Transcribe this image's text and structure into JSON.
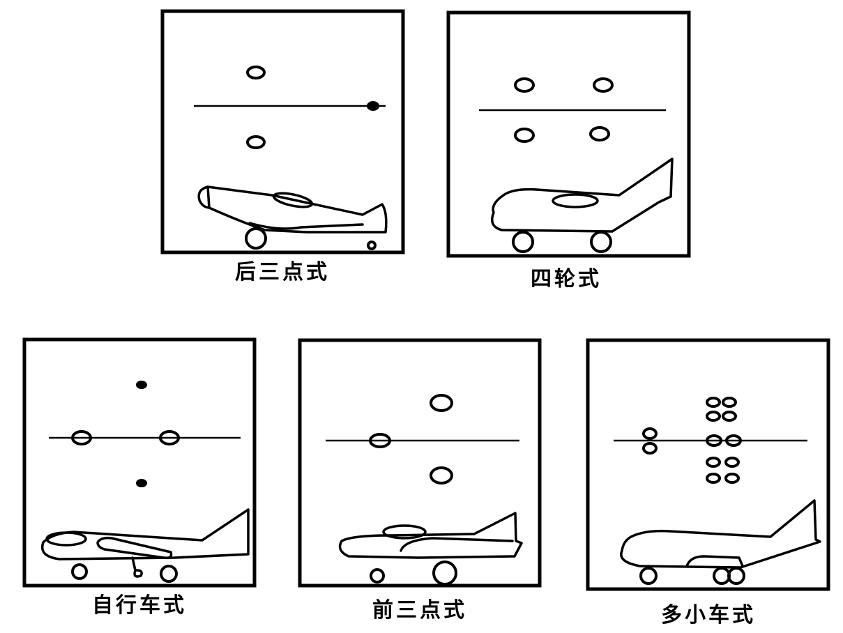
{
  "panels": [
    {
      "label": "后三点式"
    },
    {
      "label": "四轮式"
    },
    {
      "label": "自行车式"
    },
    {
      "label": "前三点式"
    },
    {
      "label": "多小车式"
    }
  ]
}
